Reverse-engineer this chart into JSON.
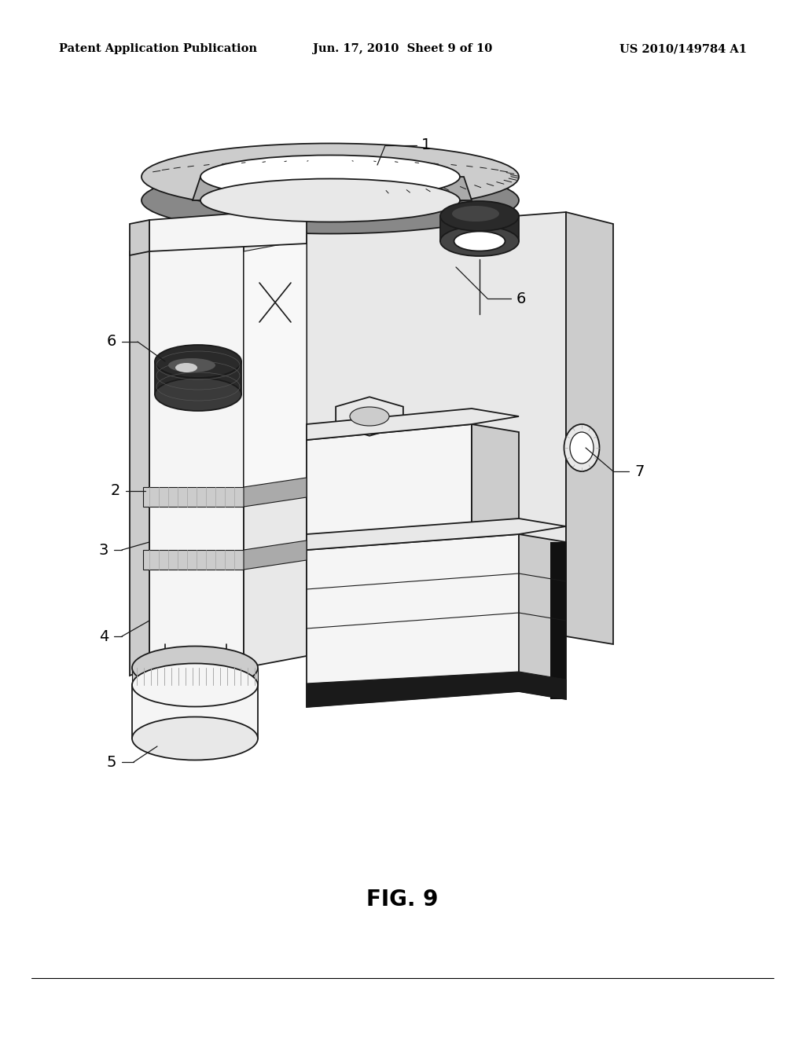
{
  "background_color": "#ffffff",
  "header_left": "Patent Application Publication",
  "header_center": "Jun. 17, 2010  Sheet 9 of 10",
  "header_right": "US 2010/149784 A1",
  "header_fontsize": 10.5,
  "figure_caption": "FIG. 9",
  "caption_fontsize": 20,
  "label_fontsize": 14
}
